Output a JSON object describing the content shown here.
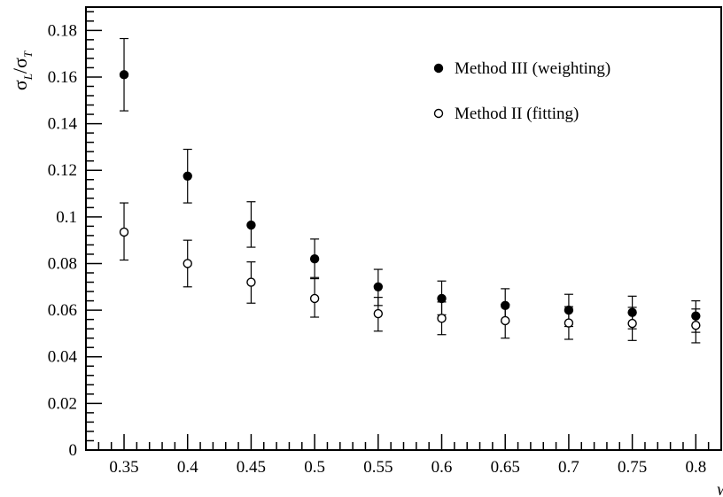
{
  "chart_data": {
    "type": "scatter",
    "title": "",
    "xlabel": "w",
    "ylabel_main": "σ",
    "ylabel_sub1": "L",
    "ylabel_mid": "/σ",
    "ylabel_sub2": "T",
    "xlim": [
      0.32,
      0.82
    ],
    "ylim": [
      0,
      0.19
    ],
    "x_ticks": [
      0.35,
      0.4,
      0.45,
      0.5,
      0.55,
      0.6,
      0.65,
      0.7,
      0.75,
      0.8
    ],
    "x_tick_labels": [
      "0.35",
      "0.4",
      "0.45",
      "0.5",
      "0.55",
      "0.6",
      "0.65",
      "0.7",
      "0.75",
      "0.8"
    ],
    "y_ticks": [
      0,
      0.02,
      0.04,
      0.06,
      0.08,
      0.1,
      0.12,
      0.14,
      0.16,
      0.18
    ],
    "y_tick_labels": [
      "0",
      "0.02",
      "0.04",
      "0.06",
      "0.08",
      "0.1",
      "0.12",
      "0.14",
      "0.16",
      "0.18"
    ],
    "grid": false,
    "legend_position": "top-right",
    "series": [
      {
        "name": "Method III (weighting)",
        "marker": "filled-circle",
        "color": "#000000",
        "x": [
          0.35,
          0.4,
          0.45,
          0.5,
          0.55,
          0.6,
          0.65,
          0.7,
          0.75,
          0.8
        ],
        "y": [
          0.161,
          0.1175,
          0.0965,
          0.082,
          0.07,
          0.065,
          0.062,
          0.06,
          0.059,
          0.0575
        ],
        "err_low": [
          0.1455,
          0.106,
          0.087,
          0.074,
          0.062,
          0.058,
          0.055,
          0.053,
          0.052,
          0.0505
        ],
        "err_high": [
          0.1765,
          0.129,
          0.1065,
          0.0905,
          0.0775,
          0.0725,
          0.0692,
          0.0668,
          0.066,
          0.064
        ]
      },
      {
        "name": "Method II (fitting)",
        "marker": "open-circle",
        "color": "#000000",
        "x": [
          0.35,
          0.4,
          0.45,
          0.5,
          0.55,
          0.6,
          0.65,
          0.7,
          0.75,
          0.8
        ],
        "y": [
          0.0935,
          0.08,
          0.072,
          0.065,
          0.0585,
          0.0565,
          0.0555,
          0.0545,
          0.0543,
          0.0535
        ],
        "err_low": [
          0.0815,
          0.07,
          0.063,
          0.057,
          0.051,
          0.0495,
          0.048,
          0.0475,
          0.047,
          0.046
        ],
        "err_high": [
          0.106,
          0.09,
          0.0807,
          0.0735,
          0.0655,
          0.0635,
          0.0625,
          0.0615,
          0.0612,
          0.0605
        ]
      }
    ]
  }
}
